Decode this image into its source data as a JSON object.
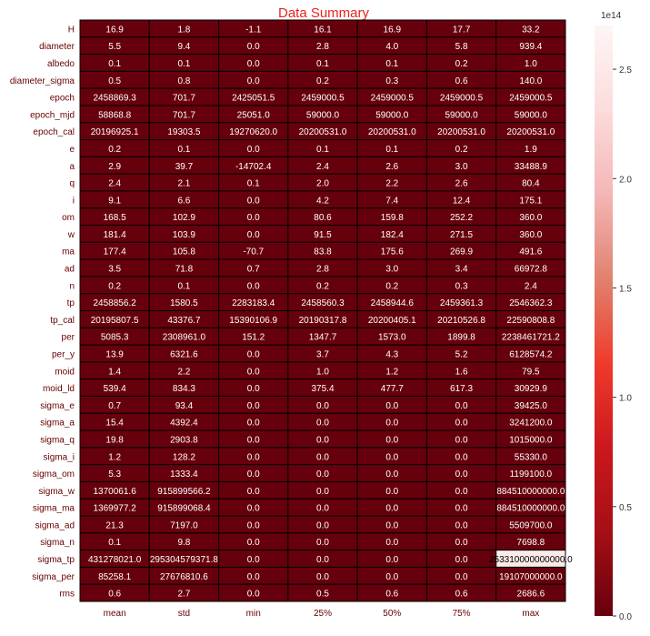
{
  "chart_data": {
    "type": "heatmap",
    "title": "Data Summary",
    "columns": [
      "mean",
      "std",
      "min",
      "25%",
      "50%",
      "75%",
      "max"
    ],
    "rows": [
      "H",
      "diameter",
      "albedo",
      "diameter_sigma",
      "epoch",
      "epoch_mjd",
      "epoch_cal",
      "e",
      "a",
      "q",
      "i",
      "om",
      "w",
      "ma",
      "ad",
      "n",
      "tp",
      "tp_cal",
      "per",
      "per_y",
      "moid",
      "moid_ld",
      "sigma_e",
      "sigma_a",
      "sigma_q",
      "sigma_i",
      "sigma_om",
      "sigma_w",
      "sigma_ma",
      "sigma_ad",
      "sigma_n",
      "sigma_tp",
      "sigma_per",
      "rms"
    ],
    "values": [
      [
        16.9,
        1.8,
        -1.1,
        16.1,
        16.9,
        17.7,
        33.2
      ],
      [
        5.5,
        9.4,
        0.0,
        2.8,
        4.0,
        5.8,
        939.4
      ],
      [
        0.1,
        0.1,
        0.0,
        0.1,
        0.1,
        0.2,
        1.0
      ],
      [
        0.5,
        0.8,
        0.0,
        0.2,
        0.3,
        0.6,
        140.0
      ],
      [
        2458869.3,
        701.7,
        2425051.5,
        2459000.5,
        2459000.5,
        2459000.5,
        2459000.5
      ],
      [
        58868.8,
        701.7,
        25051.0,
        59000.0,
        59000.0,
        59000.0,
        59000.0
      ],
      [
        20196925.1,
        19303.5,
        19270620.0,
        20200531.0,
        20200531.0,
        20200531.0,
        20200531.0
      ],
      [
        0.2,
        0.1,
        0.0,
        0.1,
        0.1,
        0.2,
        1.9
      ],
      [
        2.9,
        39.7,
        -14702.4,
        2.4,
        2.6,
        3.0,
        33488.9
      ],
      [
        2.4,
        2.1,
        0.1,
        2.0,
        2.2,
        2.6,
        80.4
      ],
      [
        9.1,
        6.6,
        0.0,
        4.2,
        7.4,
        12.4,
        175.1
      ],
      [
        168.5,
        102.9,
        0.0,
        80.6,
        159.8,
        252.2,
        360.0
      ],
      [
        181.4,
        103.9,
        0.0,
        91.5,
        182.4,
        271.5,
        360.0
      ],
      [
        177.4,
        105.8,
        -70.7,
        83.8,
        175.6,
        269.9,
        491.6
      ],
      [
        3.5,
        71.8,
        0.7,
        2.8,
        3.0,
        3.4,
        66972.8
      ],
      [
        0.2,
        0.1,
        0.0,
        0.2,
        0.2,
        0.3,
        2.4
      ],
      [
        2458856.2,
        1580.5,
        2283183.4,
        2458560.3,
        2458944.6,
        2459361.3,
        2546362.3
      ],
      [
        20195807.5,
        43376.7,
        15390106.9,
        20190317.8,
        20200405.1,
        20210526.8,
        22590808.8
      ],
      [
        5085.3,
        2308961.0,
        151.2,
        1347.7,
        1573.0,
        1899.8,
        2238461721.2
      ],
      [
        13.9,
        6321.6,
        0.0,
        3.7,
        4.3,
        5.2,
        6128574.2
      ],
      [
        1.4,
        2.2,
        0.0,
        1.0,
        1.2,
        1.6,
        79.5
      ],
      [
        539.4,
        834.3,
        0.0,
        375.4,
        477.7,
        617.3,
        30929.9
      ],
      [
        0.7,
        93.4,
        0.0,
        0.0,
        0.0,
        0.0,
        39425.0
      ],
      [
        15.4,
        4392.4,
        0.0,
        0.0,
        0.0,
        0.0,
        3241200.0
      ],
      [
        19.8,
        2903.8,
        0.0,
        0.0,
        0.0,
        0.0,
        1015000.0
      ],
      [
        1.2,
        128.2,
        0.0,
        0.0,
        0.0,
        0.0,
        55330.0
      ],
      [
        5.3,
        1333.4,
        0.0,
        0.0,
        0.0,
        0.0,
        1199100.0
      ],
      [
        1370061.6,
        915899566.2,
        0.0,
        0.0,
        0.0,
        0.0,
        884510000000.0
      ],
      [
        1369977.2,
        915899068.4,
        0.0,
        0.0,
        0.0,
        0.0,
        884510000000.0
      ],
      [
        21.3,
        7197.0,
        0.0,
        0.0,
        0.0,
        0.0,
        5509700.0
      ],
      [
        0.1,
        9.8,
        0.0,
        0.0,
        0.0,
        0.0,
        7698.8
      ],
      [
        431278021.0,
        295304579371.8,
        0.0,
        0.0,
        0.0,
        0.0,
        253310000000000.0
      ],
      [
        85258.1,
        27676810.6,
        0.0,
        0.0,
        0.0,
        0.0,
        19107000000.0
      ],
      [
        0.6,
        2.7,
        0.0,
        0.5,
        0.6,
        0.6,
        2686.6
      ]
    ],
    "cell_labels": [
      [
        "16.9",
        "1.8",
        "-1.1",
        "16.1",
        "16.9",
        "17.7",
        "33.2"
      ],
      [
        "5.5",
        "9.4",
        "0.0",
        "2.8",
        "4.0",
        "5.8",
        "939.4"
      ],
      [
        "0.1",
        "0.1",
        "0.0",
        "0.1",
        "0.1",
        "0.2",
        "1.0"
      ],
      [
        "0.5",
        "0.8",
        "0.0",
        "0.2",
        "0.3",
        "0.6",
        "140.0"
      ],
      [
        "2458869.3",
        "701.7",
        "2425051.5",
        "2459000.5",
        "2459000.5",
        "2459000.5",
        "2459000.5"
      ],
      [
        "58868.8",
        "701.7",
        "25051.0",
        "59000.0",
        "59000.0",
        "59000.0",
        "59000.0"
      ],
      [
        "20196925.1",
        "19303.5",
        "19270620.0",
        "20200531.0",
        "20200531.0",
        "20200531.0",
        "20200531.0"
      ],
      [
        "0.2",
        "0.1",
        "0.0",
        "0.1",
        "0.1",
        "0.2",
        "1.9"
      ],
      [
        "2.9",
        "39.7",
        "-14702.4",
        "2.4",
        "2.6",
        "3.0",
        "33488.9"
      ],
      [
        "2.4",
        "2.1",
        "0.1",
        "2.0",
        "2.2",
        "2.6",
        "80.4"
      ],
      [
        "9.1",
        "6.6",
        "0.0",
        "4.2",
        "7.4",
        "12.4",
        "175.1"
      ],
      [
        "168.5",
        "102.9",
        "0.0",
        "80.6",
        "159.8",
        "252.2",
        "360.0"
      ],
      [
        "181.4",
        "103.9",
        "0.0",
        "91.5",
        "182.4",
        "271.5",
        "360.0"
      ],
      [
        "177.4",
        "105.8",
        "-70.7",
        "83.8",
        "175.6",
        "269.9",
        "491.6"
      ],
      [
        "3.5",
        "71.8",
        "0.7",
        "2.8",
        "3.0",
        "3.4",
        "66972.8"
      ],
      [
        "0.2",
        "0.1",
        "0.0",
        "0.2",
        "0.2",
        "0.3",
        "2.4"
      ],
      [
        "2458856.2",
        "1580.5",
        "2283183.4",
        "2458560.3",
        "2458944.6",
        "2459361.3",
        "2546362.3"
      ],
      [
        "20195807.5",
        "43376.7",
        "15390106.9",
        "20190317.8",
        "20200405.1",
        "20210526.8",
        "22590808.8"
      ],
      [
        "5085.3",
        "2308961.0",
        "151.2",
        "1347.7",
        "1573.0",
        "1899.8",
        "2238461721.2"
      ],
      [
        "13.9",
        "6321.6",
        "0.0",
        "3.7",
        "4.3",
        "5.2",
        "6128574.2"
      ],
      [
        "1.4",
        "2.2",
        "0.0",
        "1.0",
        "1.2",
        "1.6",
        "79.5"
      ],
      [
        "539.4",
        "834.3",
        "0.0",
        "375.4",
        "477.7",
        "617.3",
        "30929.9"
      ],
      [
        "0.7",
        "93.4",
        "0.0",
        "0.0",
        "0.0",
        "0.0",
        "39425.0"
      ],
      [
        "15.4",
        "4392.4",
        "0.0",
        "0.0",
        "0.0",
        "0.0",
        "3241200.0"
      ],
      [
        "19.8",
        "2903.8",
        "0.0",
        "0.0",
        "0.0",
        "0.0",
        "1015000.0"
      ],
      [
        "1.2",
        "128.2",
        "0.0",
        "0.0",
        "0.0",
        "0.0",
        "55330.0"
      ],
      [
        "5.3",
        "1333.4",
        "0.0",
        "0.0",
        "0.0",
        "0.0",
        "1199100.0"
      ],
      [
        "1370061.6",
        "915899566.2",
        "0.0",
        "0.0",
        "0.0",
        "0.0",
        "884510000000.0"
      ],
      [
        "1369977.2",
        "915899068.4",
        "0.0",
        "0.0",
        "0.0",
        "0.0",
        "884510000000.0"
      ],
      [
        "21.3",
        "7197.0",
        "0.0",
        "0.0",
        "0.0",
        "0.0",
        "5509700.0"
      ],
      [
        "0.1",
        "9.8",
        "0.0",
        "0.0",
        "0.0",
        "0.0",
        "7698.8"
      ],
      [
        "431278021.0",
        "295304579371.8",
        "0.0",
        "0.0",
        "0.0",
        "0.0",
        "253310000000000.0"
      ],
      [
        "85258.1",
        "27676810.6",
        "0.0",
        "0.0",
        "0.0",
        "0.0",
        "19107000000.0"
      ],
      [
        "0.6",
        "2.7",
        "0.0",
        "0.5",
        "0.6",
        "0.6",
        "2686.6"
      ]
    ],
    "colorbar": {
      "range": [
        0,
        270000000000000.0
      ],
      "ticks": [
        0,
        0.5,
        1.0,
        1.5,
        2.0,
        2.5
      ],
      "tick_labels": [
        "0.0",
        "0.5",
        "1.0",
        "1.5",
        "2.0",
        "2.5"
      ],
      "offset_label": "1e14",
      "colors": [
        "#67000d",
        "#a50f15",
        "#cb181d",
        "#ef3b2c",
        "#e0826f",
        "#f4b6b6",
        "#fcdcdc",
        "#fff5f5"
      ]
    },
    "grid": true,
    "cell_border_color": "#000000",
    "label_text_color": "#ffffff",
    "tick_label_color": "#660000",
    "title_color": "#e8221e"
  }
}
